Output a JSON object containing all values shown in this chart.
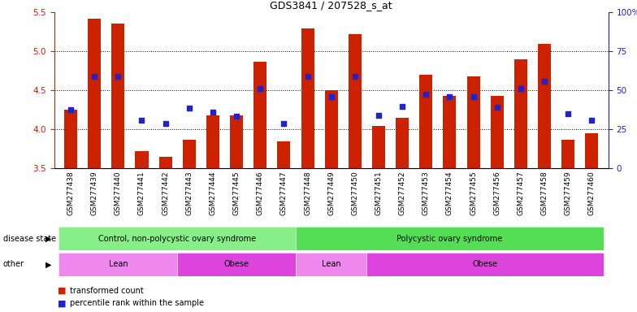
{
  "title": "GDS3841 / 207528_s_at",
  "samples": [
    "GSM277438",
    "GSM277439",
    "GSM277440",
    "GSM277441",
    "GSM277442",
    "GSM277443",
    "GSM277444",
    "GSM277445",
    "GSM277446",
    "GSM277447",
    "GSM277448",
    "GSM277449",
    "GSM277450",
    "GSM277451",
    "GSM277452",
    "GSM277453",
    "GSM277454",
    "GSM277455",
    "GSM277456",
    "GSM277457",
    "GSM277458",
    "GSM277459",
    "GSM277460"
  ],
  "bar_values": [
    4.25,
    5.42,
    5.36,
    3.72,
    3.65,
    3.87,
    4.18,
    4.18,
    4.87,
    3.85,
    5.3,
    4.5,
    5.22,
    4.05,
    4.15,
    4.7,
    4.43,
    4.68,
    4.43,
    4.9,
    5.1,
    3.87,
    3.95
  ],
  "percentile_values": [
    4.25,
    4.68,
    4.68,
    4.12,
    4.08,
    4.27,
    4.22,
    4.17,
    4.52,
    4.08,
    4.68,
    4.42,
    4.68,
    4.18,
    4.3,
    4.45,
    4.42,
    4.42,
    4.28,
    4.52,
    4.62,
    4.2,
    4.12
  ],
  "ymin": 3.5,
  "ymax": 5.5,
  "yticks_left": [
    3.5,
    4.0,
    4.5,
    5.0,
    5.5
  ],
  "yticks_right_labels": [
    "0",
    "25",
    "50",
    "75",
    "100%"
  ],
  "bar_color": "#cc2200",
  "percentile_color": "#2222cc",
  "disease_state_groups": [
    {
      "label": "Control, non-polycystic ovary syndrome",
      "start": 0,
      "end": 10,
      "color": "#88ee88"
    },
    {
      "label": "Polycystic ovary syndrome",
      "start": 10,
      "end": 23,
      "color": "#55dd55"
    }
  ],
  "other_groups": [
    {
      "label": "Lean",
      "start": 0,
      "end": 5,
      "color": "#ee88ee"
    },
    {
      "label": "Obese",
      "start": 5,
      "end": 10,
      "color": "#dd44dd"
    },
    {
      "label": "Lean",
      "start": 10,
      "end": 13,
      "color": "#ee88ee"
    },
    {
      "label": "Obese",
      "start": 13,
      "end": 23,
      "color": "#dd44dd"
    }
  ],
  "legend_label_count": "transformed count",
  "legend_label_pct": "percentile rank within the sample",
  "annotation_row1_label": "disease state",
  "annotation_row2_label": "other",
  "title_fontsize": 9,
  "tick_fontsize": 6.5,
  "annot_fontsize": 7
}
